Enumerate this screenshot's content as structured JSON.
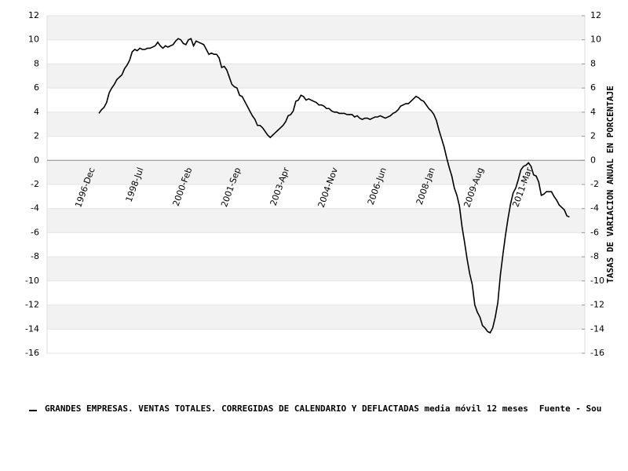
{
  "chart_data": {
    "type": "line",
    "categories": [
      "1996-Dec",
      null,
      null,
      null,
      null,
      null,
      null,
      null,
      null,
      null,
      null,
      null,
      null,
      null,
      null,
      null,
      null,
      null,
      null,
      "1998-Jul",
      null,
      null,
      null,
      null,
      null,
      null,
      null,
      null,
      null,
      null,
      null,
      null,
      null,
      null,
      null,
      null,
      null,
      null,
      "2000-Feb",
      null,
      null,
      null,
      null,
      null,
      null,
      null,
      null,
      null,
      null,
      null,
      null,
      null,
      null,
      null,
      null,
      null,
      null,
      "2001-Sep",
      null,
      null,
      null,
      null,
      null,
      null,
      null,
      null,
      null,
      null,
      null,
      null,
      null,
      null,
      null,
      null,
      null,
      null,
      "2003-Apr",
      null,
      null,
      null,
      null,
      null,
      null,
      null,
      null,
      null,
      null,
      null,
      null,
      null,
      null,
      null,
      null,
      null,
      null,
      "2004-Nov",
      null,
      null,
      null,
      null,
      null,
      null,
      null,
      null,
      null,
      null,
      null,
      null,
      null,
      null,
      null,
      null,
      null,
      null,
      "2006-Jun",
      null,
      null,
      null,
      null,
      null,
      null,
      null,
      null,
      null,
      null,
      null,
      null,
      null,
      null,
      null,
      null,
      null,
      null,
      "2008-Jan",
      null,
      null,
      null,
      null,
      null,
      null,
      null,
      null,
      null,
      null,
      null,
      null,
      null,
      null,
      null,
      null,
      null,
      null,
      "2009-Aug",
      null,
      null,
      null,
      null,
      null,
      null,
      null,
      null,
      null,
      null,
      null,
      null,
      null,
      null,
      null,
      null,
      null,
      null,
      "2011-Mar",
      null,
      null,
      null,
      null,
      null,
      null,
      null,
      null,
      null,
      null,
      null,
      null,
      null,
      null,
      null,
      null,
      null
    ],
    "series": [
      {
        "name": "GRANDES EMPRESAS. VENTAS TOTALES. CORREGIDAS DE CALENDARIO Y DEFLACTADAS media móvil 12 meses",
        "color": "#000000",
        "values": [
          null,
          null,
          null,
          null,
          3.9,
          4.2,
          4.4,
          4.8,
          5.6,
          6.0,
          6.3,
          6.7,
          6.9,
          7.1,
          7.6,
          7.9,
          8.3,
          9.0,
          9.2,
          9.1,
          9.3,
          9.2,
          9.2,
          9.3,
          9.3,
          9.4,
          9.5,
          9.8,
          9.5,
          9.3,
          9.5,
          9.4,
          9.5,
          9.6,
          9.9,
          10.1,
          10.0,
          9.7,
          9.6,
          10.0,
          10.1,
          9.5,
          9.9,
          9.8,
          9.7,
          9.6,
          9.2,
          8.8,
          8.9,
          8.8,
          8.8,
          8.5,
          7.7,
          7.8,
          7.5,
          6.9,
          6.3,
          6.1,
          6.0,
          5.4,
          5.3,
          4.9,
          4.5,
          4.1,
          3.7,
          3.4,
          2.9,
          2.9,
          2.7,
          2.4,
          2.1,
          1.9,
          2.1,
          2.3,
          2.5,
          2.7,
          2.9,
          3.2,
          3.7,
          3.8,
          4.1,
          4.9,
          5.0,
          5.4,
          5.3,
          5.0,
          5.1,
          5.0,
          4.9,
          4.8,
          4.6,
          4.6,
          4.5,
          4.3,
          4.3,
          4.1,
          4.0,
          4.0,
          3.9,
          3.9,
          3.9,
          3.8,
          3.8,
          3.8,
          3.6,
          3.7,
          3.5,
          3.4,
          3.5,
          3.5,
          3.4,
          3.5,
          3.6,
          3.6,
          3.7,
          3.6,
          3.5,
          3.6,
          3.7,
          3.9,
          4.0,
          4.2,
          4.5,
          4.6,
          4.7,
          4.7,
          4.9,
          5.1,
          5.3,
          5.2,
          5.0,
          4.9,
          4.6,
          4.3,
          4.1,
          3.8,
          3.3,
          2.5,
          1.8,
          1.1,
          0.2,
          -0.6,
          -1.3,
          -2.3,
          -2.9,
          -3.8,
          -5.5,
          -6.8,
          -8.2,
          -9.4,
          -10.3,
          -12.0,
          -12.6,
          -13.0,
          -13.7,
          -13.9,
          -14.2,
          -14.3,
          -13.9,
          -13.0,
          -11.8,
          -9.5,
          -7.8,
          -6.2,
          -4.8,
          -3.6,
          -2.7,
          -2.3,
          -1.6,
          -0.8,
          -0.5,
          -0.4,
          -0.2,
          -0.5,
          -1.2,
          -1.3,
          -1.8,
          -2.9,
          -2.8,
          -2.6,
          -2.6,
          -2.6,
          -3.0,
          -3.3,
          -3.7,
          -3.9,
          -4.1,
          -4.6,
          -4.7
        ]
      }
    ],
    "ylim": [
      -16,
      12
    ],
    "yticks": [
      -16,
      -14,
      -12,
      -10,
      -8,
      -6,
      -4,
      -2,
      0,
      2,
      4,
      6,
      8,
      10,
      12
    ],
    "y2lim": [
      -16,
      12
    ],
    "y2ticks": [
      -16,
      -14,
      -12,
      -10,
      -8,
      -6,
      -4,
      -2,
      0,
      2,
      4,
      6,
      8,
      10,
      12
    ],
    "y2label": "TASAS DE VARIACION ANUAL EN PORCENTAJE",
    "source": "Fuente - Sou",
    "grid": true
  }
}
